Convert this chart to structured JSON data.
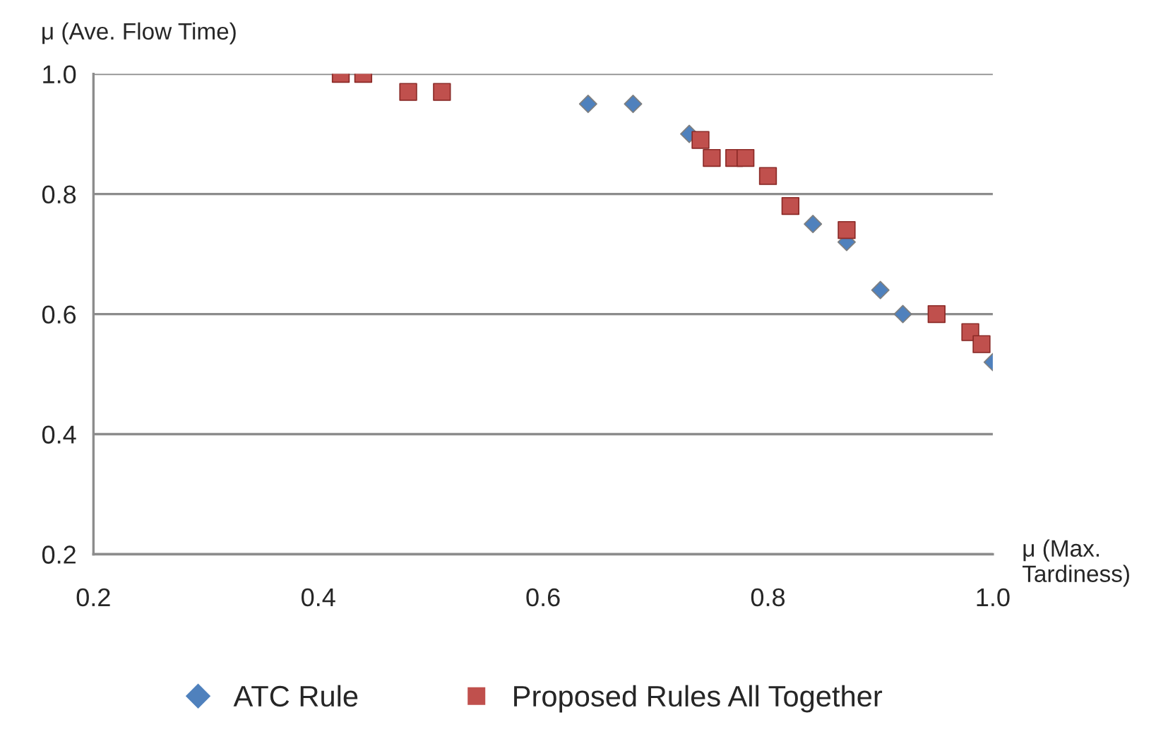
{
  "chart_data": {
    "type": "scatter",
    "xlabel": "μ (Max. Tardiness)",
    "ylabel": "μ (Ave. Flow Time)",
    "xlim": [
      0.2,
      1.0
    ],
    "ylim": [
      0.2,
      1.0
    ],
    "xticks": [
      {
        "value": 0.2,
        "label": "0.2"
      },
      {
        "value": 0.4,
        "label": "0.4"
      },
      {
        "value": 0.6,
        "label": "0.6"
      },
      {
        "value": 0.8,
        "label": "0.8"
      },
      {
        "value": 1.0,
        "label": "1.0"
      }
    ],
    "yticks": [
      {
        "value": 0.2,
        "label": "0.2"
      },
      {
        "value": 0.4,
        "label": "0.4"
      },
      {
        "value": 0.6,
        "label": "0.6"
      },
      {
        "value": 0.8,
        "label": "0.8"
      },
      {
        "value": 1.0,
        "label": "1.0"
      }
    ],
    "grid": "y",
    "legend": "bottom",
    "series": [
      {
        "name": "ATC Rule",
        "color": "#4f81bd",
        "marker": "diamond",
        "x": [
          0.64,
          0.68,
          0.73,
          0.84,
          0.87,
          0.9,
          0.92,
          1.0
        ],
        "values": [
          0.95,
          0.95,
          0.9,
          0.75,
          0.72,
          0.64,
          0.6,
          0.52
        ]
      },
      {
        "name": "Proposed Rules All Together",
        "color": "#c0504d",
        "marker": "square",
        "x": [
          0.42,
          0.44,
          0.48,
          0.51,
          0.74,
          0.75,
          0.77,
          0.78,
          0.8,
          0.82,
          0.87,
          0.95,
          0.98,
          0.99
        ],
        "values": [
          1.0,
          1.0,
          0.97,
          0.97,
          0.89,
          0.86,
          0.86,
          0.86,
          0.83,
          0.78,
          0.74,
          0.6,
          0.57,
          0.55
        ]
      }
    ]
  }
}
